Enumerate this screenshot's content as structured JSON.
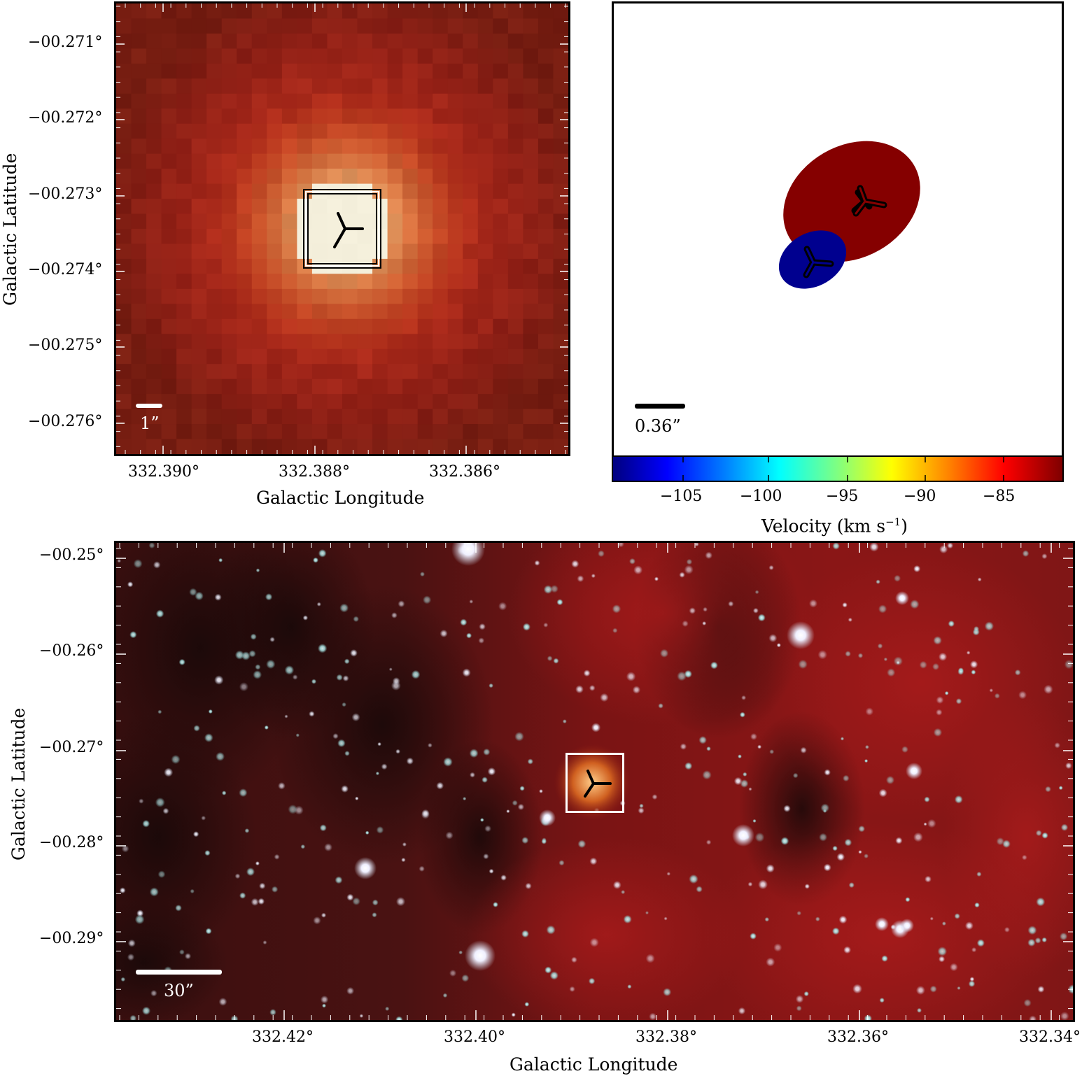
{
  "panel_a": {
    "y_ticks": [
      "−00.271°",
      "−00.272°",
      "−00.273°",
      "−00.274°",
      "−00.275°",
      "−00.276°"
    ],
    "x_ticks": [
      "332.390°",
      "332.388°",
      "332.386°"
    ],
    "ylabel": "Galactic Latitude",
    "xlabel": "Galactic Longitude",
    "scalebar": "1”"
  },
  "panel_b": {
    "scalebar": "0.36”",
    "colorbar_ticks": [
      "−105",
      "−100",
      "−95",
      "−90",
      "−85"
    ],
    "colorbar_label": "Velocity (km s",
    "colorbar_label_exp": "−1",
    "colorbar_label_end": ")",
    "colors": {
      "red_component": "#850000",
      "blue_component": "#00008f"
    }
  },
  "panel_c": {
    "y_ticks": [
      "−00.25°",
      "−00.26°",
      "−00.27°",
      "−00.28°",
      "−00.29°"
    ],
    "x_ticks": [
      "332.42°",
      "332.40°",
      "332.38°",
      "332.36°",
      "332.34°"
    ],
    "ylabel": "Galactic Latitude",
    "xlabel": "Galactic Longitude",
    "scalebar": "30”"
  }
}
